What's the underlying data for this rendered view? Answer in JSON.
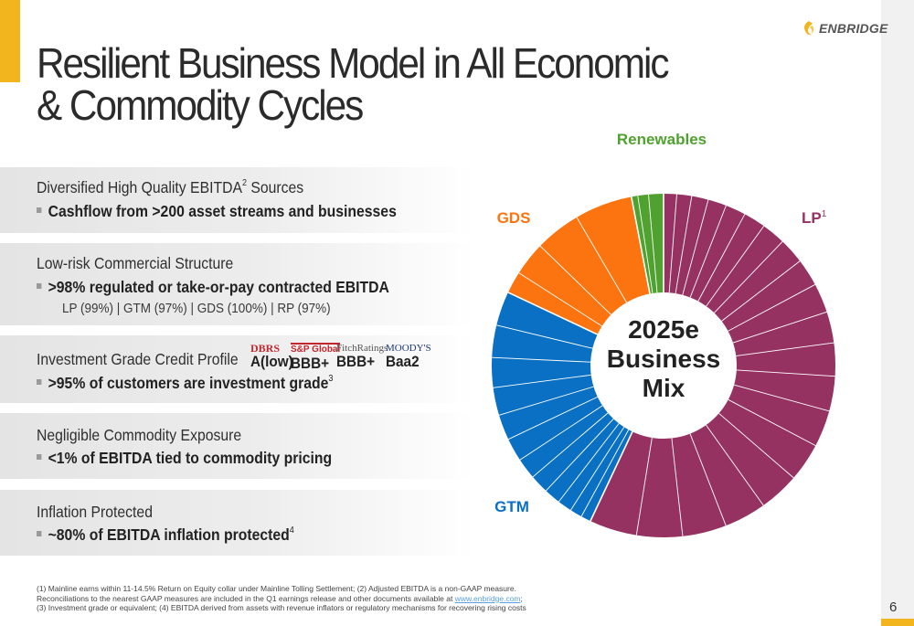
{
  "brand": {
    "name": "ENBRIDGE",
    "accent_color": "#f2b51d"
  },
  "title": {
    "line1": "Resilient Business Model in All Economic",
    "line2": "& Commodity Cycles"
  },
  "panels": [
    {
      "head": "Diversified High Quality EBITDA",
      "head_sup": "2",
      "head_tail": " Sources",
      "bullet": "Cashflow from >200 asset streams and businesses"
    },
    {
      "head": "Low-risk Commercial Structure",
      "bullet": ">98% regulated or take-or-pay contracted EBITDA",
      "sub": "LP (99%) | GTM (97%) | GDS (100%) | RP (97%)"
    },
    {
      "head": "Investment Grade Credit Profile",
      "bullet": ">95% of customers are investment grade",
      "bullet_sup": "3"
    },
    {
      "head": "Negligible Commodity Exposure",
      "bullet": "<1% of EBITDA tied to commodity pricing"
    },
    {
      "head": "Inflation Protected",
      "bullet": "~80% of EBITDA inflation protected",
      "bullet_sup": "4"
    }
  ],
  "ratings": [
    {
      "agency": "DBRS",
      "grade": "A(low)"
    },
    {
      "agency": "S&P Global",
      "grade": "BBB+"
    },
    {
      "agency": "FitchRatings",
      "grade": "BBB+"
    },
    {
      "agency": "MOODY'S",
      "grade": "Baa2"
    }
  ],
  "chart_data": {
    "type": "pie",
    "title": "2025e Business Mix",
    "center_lines": [
      "2025e",
      "Business",
      "Mix"
    ],
    "slices": [
      {
        "name": "LP",
        "label": "LP",
        "label_sup": "1",
        "value": 57,
        "color": "#963262"
      },
      {
        "name": "GTM",
        "label": "GTM",
        "value": 25,
        "color": "#0a70c4"
      },
      {
        "name": "GDS",
        "label": "GDS",
        "value": 15,
        "color": "#fc7410"
      },
      {
        "name": "Renewables",
        "label": "Renewables",
        "value": 3,
        "color": "#4fa22f"
      }
    ],
    "sub_segment_counts": {
      "LP": 20,
      "GTM": 12,
      "GDS": 4,
      "Renewables": 3
    }
  },
  "footnotes": {
    "line1": "(1) Mainline earns within 11-14.5% Return on Equity collar under Mainline Tolling Settlement; (2) Adjusted EBITDA is a non-GAAP measure.",
    "line2_pre": "Reconciliations to the nearest GAAP measures are included in the Q1 earnings release and other documents available at ",
    "line2_link": "www.enbridge.com",
    "line2_post": ";",
    "line3": "(3) Investment grade or equivalent; (4) EBITDA derived from assets with revenue inflators or regulatory mechanisms for recovering rising costs"
  },
  "page_number": "6"
}
